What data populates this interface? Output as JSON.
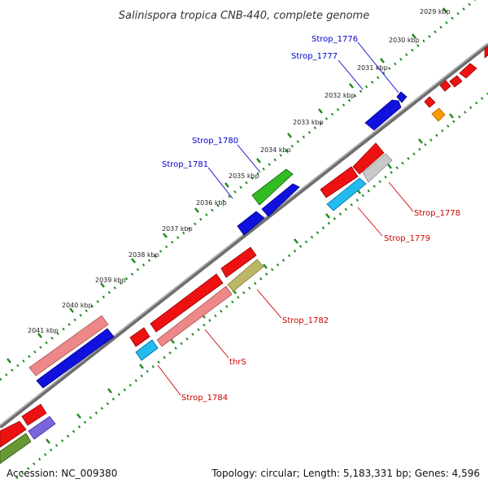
{
  "title": "Salinispora tropica CNB-440, complete genome",
  "footer": {
    "accession": "Accession: NC_009380",
    "summary": "Topology: circular; Length: 5,183,331 bp; Genes: 4,596"
  },
  "ticks": [
    "2029 kbp",
    "2030 kbp",
    "2031 kbp",
    "2032 kbp",
    "2033 kbp",
    "2034 kbp",
    "2035 kbp",
    "2036 kbp",
    "2037 kbp",
    "2038 kbp",
    "2039 kbp",
    "2040 kbp",
    "2041 kbp"
  ],
  "gene_labels": {
    "strop_1776": "Strop_1776",
    "strop_1777": "Strop_1777",
    "strop_1780": "Strop_1780",
    "strop_1781": "Strop_1781",
    "strop_1778": "Strop_1778",
    "strop_1779": "Strop_1779",
    "strop_1782": "Strop_1782",
    "thrs": "thrS",
    "strop_1784": "Strop_1784"
  },
  "colors": {
    "forward_label": "#0000cc",
    "reverse_label": "#cc0000",
    "backbone": "#7a7a7a",
    "dots": "#228b22",
    "cds_red": "#ee1111",
    "cds_blue": "#1111dd",
    "cds_green": "#33bb22",
    "cds_pink": "#ee8888",
    "cds_cyan": "#22bbee",
    "cds_gray": "#c8c8c8",
    "cds_olive": "#bbb766",
    "cds_orange": "#ff9900",
    "cds_purple": "#7766dd",
    "cds_darkgreen": "#669933"
  }
}
